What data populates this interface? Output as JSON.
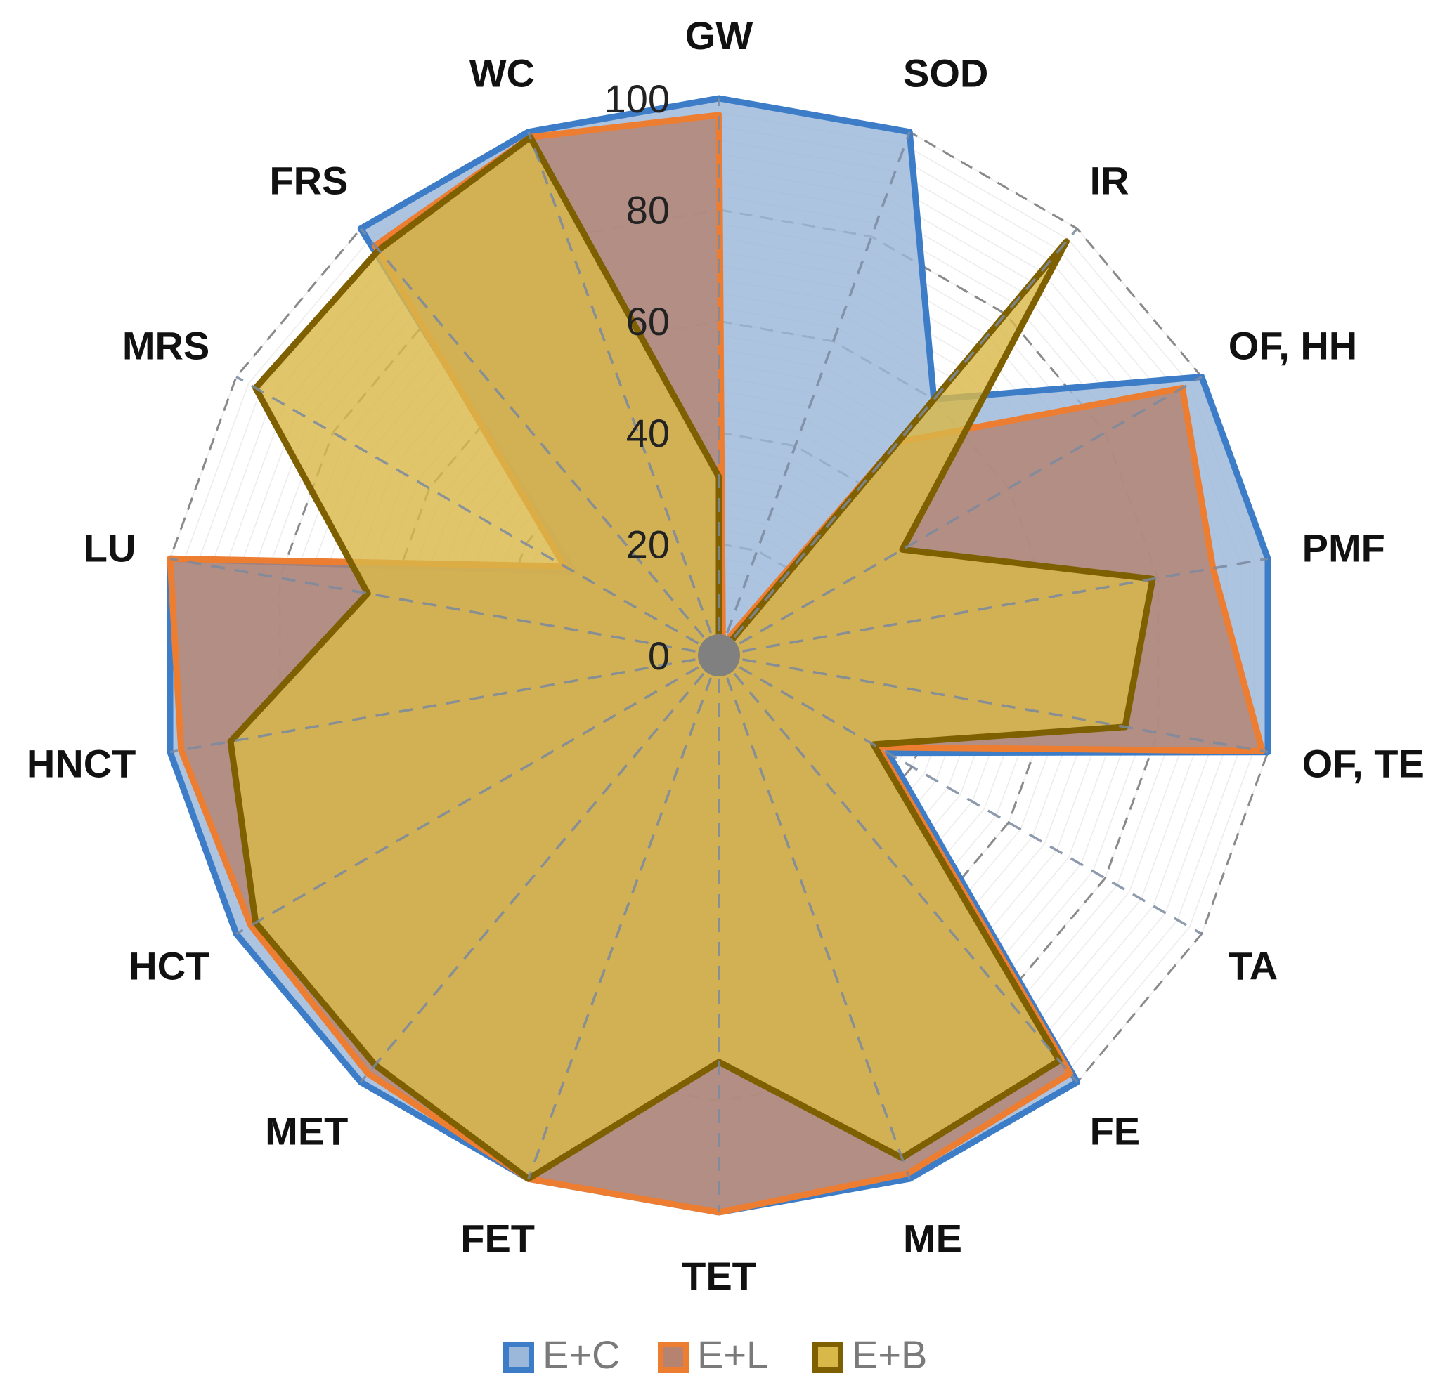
{
  "chart_data": {
    "type": "radar",
    "categories": [
      "GW",
      "SOD",
      "IR",
      "OF, HH",
      "PMF",
      "OF, TE",
      "TA",
      "FE",
      "ME",
      "TET",
      "FET",
      "MET",
      "HCT",
      "HNCT",
      "LU",
      "MRS",
      "FRS",
      "WC"
    ],
    "rlim": [
      0,
      100
    ],
    "ticks": [
      "0",
      "20",
      "40",
      "60",
      "80",
      "100"
    ],
    "tick_values": [
      0,
      20,
      40,
      60,
      80,
      100
    ],
    "grid": true,
    "legend_position": "bottom",
    "series": [
      {
        "name": "E+C",
        "color": "#3d7dc8",
        "fill": "#9bb7d9",
        "values": [
          100,
          100,
          60,
          100,
          100,
          100,
          35,
          100,
          100,
          100,
          100,
          100,
          100,
          100,
          100,
          30,
          100,
          100
        ]
      },
      {
        "name": "E+L",
        "color": "#ed7d31",
        "fill": "#b5836f",
        "values": [
          97,
          2,
          50,
          96,
          90,
          99,
          33,
          98,
          99,
          100,
          100,
          98,
          97,
          98,
          100,
          32,
          96,
          99
        ]
      },
      {
        "name": "E+B",
        "color": "#7f6000",
        "fill": "#d9b84a",
        "values": [
          32,
          0,
          97,
          38,
          79,
          74,
          32,
          95,
          96,
          73,
          100,
          96,
          96,
          89,
          64,
          96,
          95,
          99
        ]
      }
    ]
  }
}
